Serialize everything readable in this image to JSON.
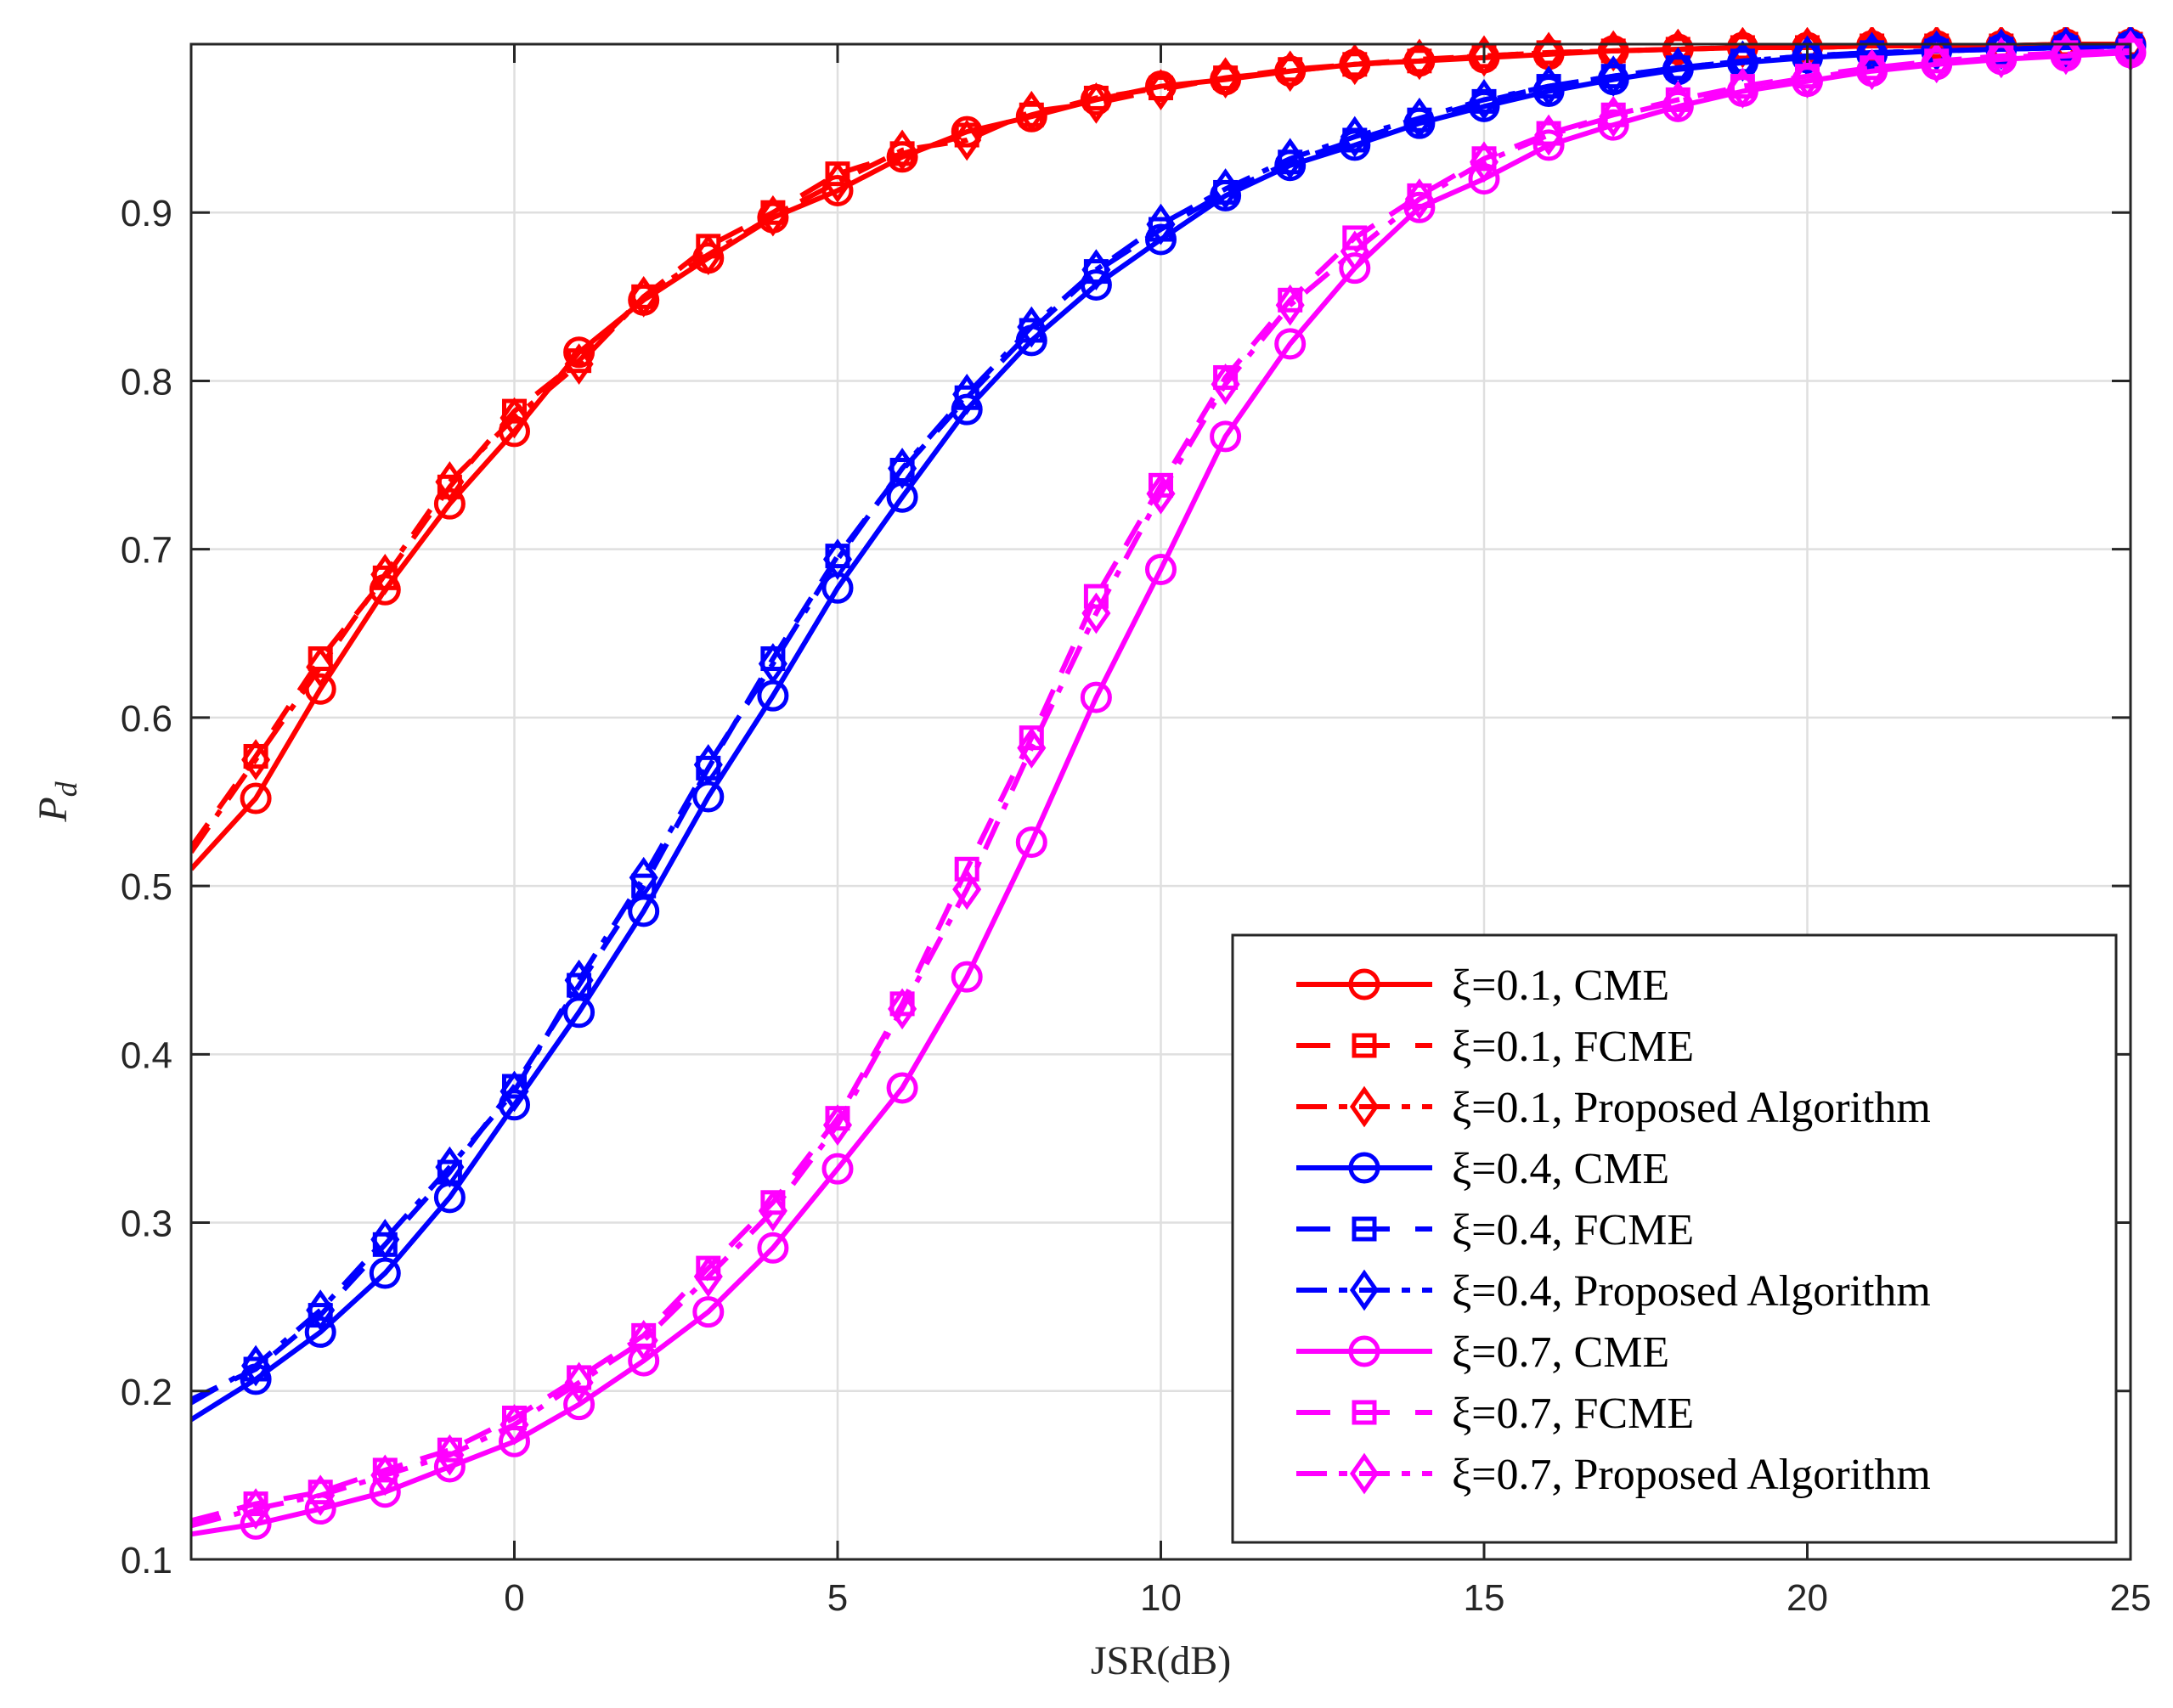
{
  "chart_data": {
    "type": "line",
    "title": "",
    "xlabel": "JSR(dB)",
    "ylabel": "Pd",
    "ylabel_main": "P",
    "ylabel_sub": "d",
    "xlim": [
      -5,
      25
    ],
    "ylim": [
      0.1,
      1.0
    ],
    "xticks": [
      0,
      5,
      10,
      15,
      20,
      25
    ],
    "yticks": [
      0.1,
      0.2,
      0.3,
      0.4,
      0.5,
      0.6,
      0.7,
      0.8,
      0.9
    ],
    "grid": true,
    "legend_position": "bottom-right",
    "x": [
      -5,
      -4,
      -3,
      -2,
      -1,
      0,
      1,
      2,
      3,
      4,
      5,
      6,
      7,
      8,
      9,
      10,
      11,
      12,
      13,
      14,
      15,
      16,
      17,
      18,
      19,
      20,
      21,
      22,
      23,
      24,
      25
    ],
    "colors": {
      "red": "#ff0000",
      "blue": "#0000ff",
      "magenta": "#ff00ff"
    },
    "series": [
      {
        "name": "ξ=0.1, CME",
        "color": "#ff0000",
        "style": "solid",
        "marker": "circle",
        "values": [
          0.51,
          0.552,
          0.617,
          0.676,
          0.727,
          0.77,
          0.817,
          0.848,
          0.873,
          0.897,
          0.913,
          0.933,
          0.948,
          0.957,
          0.967,
          0.975,
          0.979,
          0.984,
          0.988,
          0.99,
          0.992,
          0.994,
          0.996,
          0.997,
          0.998,
          0.998,
          0.999,
          0.999,
          0.999,
          1.0,
          1.0
        ]
      },
      {
        "name": "ξ=0.1, FCME",
        "color": "#ff0000",
        "style": "dashed",
        "marker": "square",
        "values": [
          0.523,
          0.577,
          0.635,
          0.683,
          0.737,
          0.782,
          0.812,
          0.85,
          0.88,
          0.9,
          0.923,
          0.935,
          0.946,
          0.958,
          0.968,
          0.974,
          0.98,
          0.985,
          0.988,
          0.99,
          0.993,
          0.995,
          0.996,
          0.997,
          0.998,
          0.998,
          0.999,
          0.999,
          0.999,
          1.0,
          1.0
        ]
      },
      {
        "name": "ξ=0.1, Proposed Algorithm",
        "color": "#ff0000",
        "style": "dashdot",
        "marker": "diamond",
        "values": [
          0.52,
          0.575,
          0.63,
          0.685,
          0.74,
          0.778,
          0.81,
          0.85,
          0.875,
          0.898,
          0.918,
          0.937,
          0.943,
          0.96,
          0.965,
          0.973,
          0.98,
          0.984,
          0.988,
          0.991,
          0.993,
          0.995,
          0.996,
          0.997,
          0.998,
          0.998,
          0.999,
          0.999,
          0.999,
          1.0,
          1.0
        ]
      },
      {
        "name": "ξ=0.4, CME",
        "color": "#0000ff",
        "style": "solid",
        "marker": "circle",
        "values": [
          0.183,
          0.207,
          0.235,
          0.27,
          0.315,
          0.37,
          0.425,
          0.485,
          0.553,
          0.613,
          0.677,
          0.731,
          0.783,
          0.824,
          0.857,
          0.884,
          0.91,
          0.928,
          0.94,
          0.953,
          0.963,
          0.972,
          0.979,
          0.985,
          0.989,
          0.992,
          0.994,
          0.996,
          0.997,
          0.998,
          0.999
        ]
      },
      {
        "name": "ξ=0.4, FCME",
        "color": "#0000ff",
        "style": "dashed",
        "marker": "square",
        "values": [
          0.195,
          0.213,
          0.245,
          0.287,
          0.33,
          0.381,
          0.441,
          0.5,
          0.57,
          0.635,
          0.696,
          0.747,
          0.79,
          0.83,
          0.865,
          0.89,
          0.912,
          0.93,
          0.943,
          0.955,
          0.966,
          0.975,
          0.981,
          0.986,
          0.99,
          0.993,
          0.995,
          0.996,
          0.997,
          0.998,
          0.999
        ]
      },
      {
        "name": "ξ=0.4, Proposed Algorithm",
        "color": "#0000ff",
        "style": "dashdot",
        "marker": "diamond",
        "values": [
          0.193,
          0.215,
          0.248,
          0.29,
          0.333,
          0.378,
          0.444,
          0.505,
          0.572,
          0.632,
          0.694,
          0.748,
          0.792,
          0.832,
          0.866,
          0.893,
          0.914,
          0.932,
          0.945,
          0.956,
          0.967,
          0.975,
          0.981,
          0.986,
          0.99,
          0.993,
          0.995,
          0.996,
          0.997,
          0.998,
          0.999
        ]
      },
      {
        "name": "ξ=0.7, CME",
        "color": "#ff00ff",
        "style": "solid",
        "marker": "circle",
        "values": [
          0.115,
          0.121,
          0.13,
          0.14,
          0.155,
          0.17,
          0.192,
          0.218,
          0.247,
          0.285,
          0.332,
          0.38,
          0.446,
          0.526,
          0.612,
          0.688,
          0.767,
          0.822,
          0.867,
          0.903,
          0.92,
          0.94,
          0.952,
          0.963,
          0.972,
          0.978,
          0.984,
          0.988,
          0.991,
          0.993,
          0.995
        ]
      },
      {
        "name": "ξ=0.7, FCME",
        "color": "#ff00ff",
        "style": "dashed",
        "marker": "square",
        "values": [
          0.123,
          0.133,
          0.14,
          0.153,
          0.165,
          0.184,
          0.208,
          0.233,
          0.273,
          0.312,
          0.362,
          0.43,
          0.51,
          0.588,
          0.672,
          0.738,
          0.802,
          0.848,
          0.885,
          0.91,
          0.932,
          0.947,
          0.958,
          0.967,
          0.975,
          0.981,
          0.986,
          0.99,
          0.993,
          0.995,
          0.996
        ]
      },
      {
        "name": "ξ=0.7, Proposed Algorithm",
        "color": "#ff00ff",
        "style": "dashdot",
        "marker": "diamond",
        "values": [
          0.12,
          0.13,
          0.138,
          0.15,
          0.162,
          0.18,
          0.205,
          0.23,
          0.268,
          0.307,
          0.358,
          0.427,
          0.498,
          0.582,
          0.662,
          0.733,
          0.798,
          0.845,
          0.877,
          0.908,
          0.93,
          0.946,
          0.957,
          0.966,
          0.974,
          0.98,
          0.985,
          0.989,
          0.992,
          0.994,
          0.996
        ]
      }
    ]
  }
}
